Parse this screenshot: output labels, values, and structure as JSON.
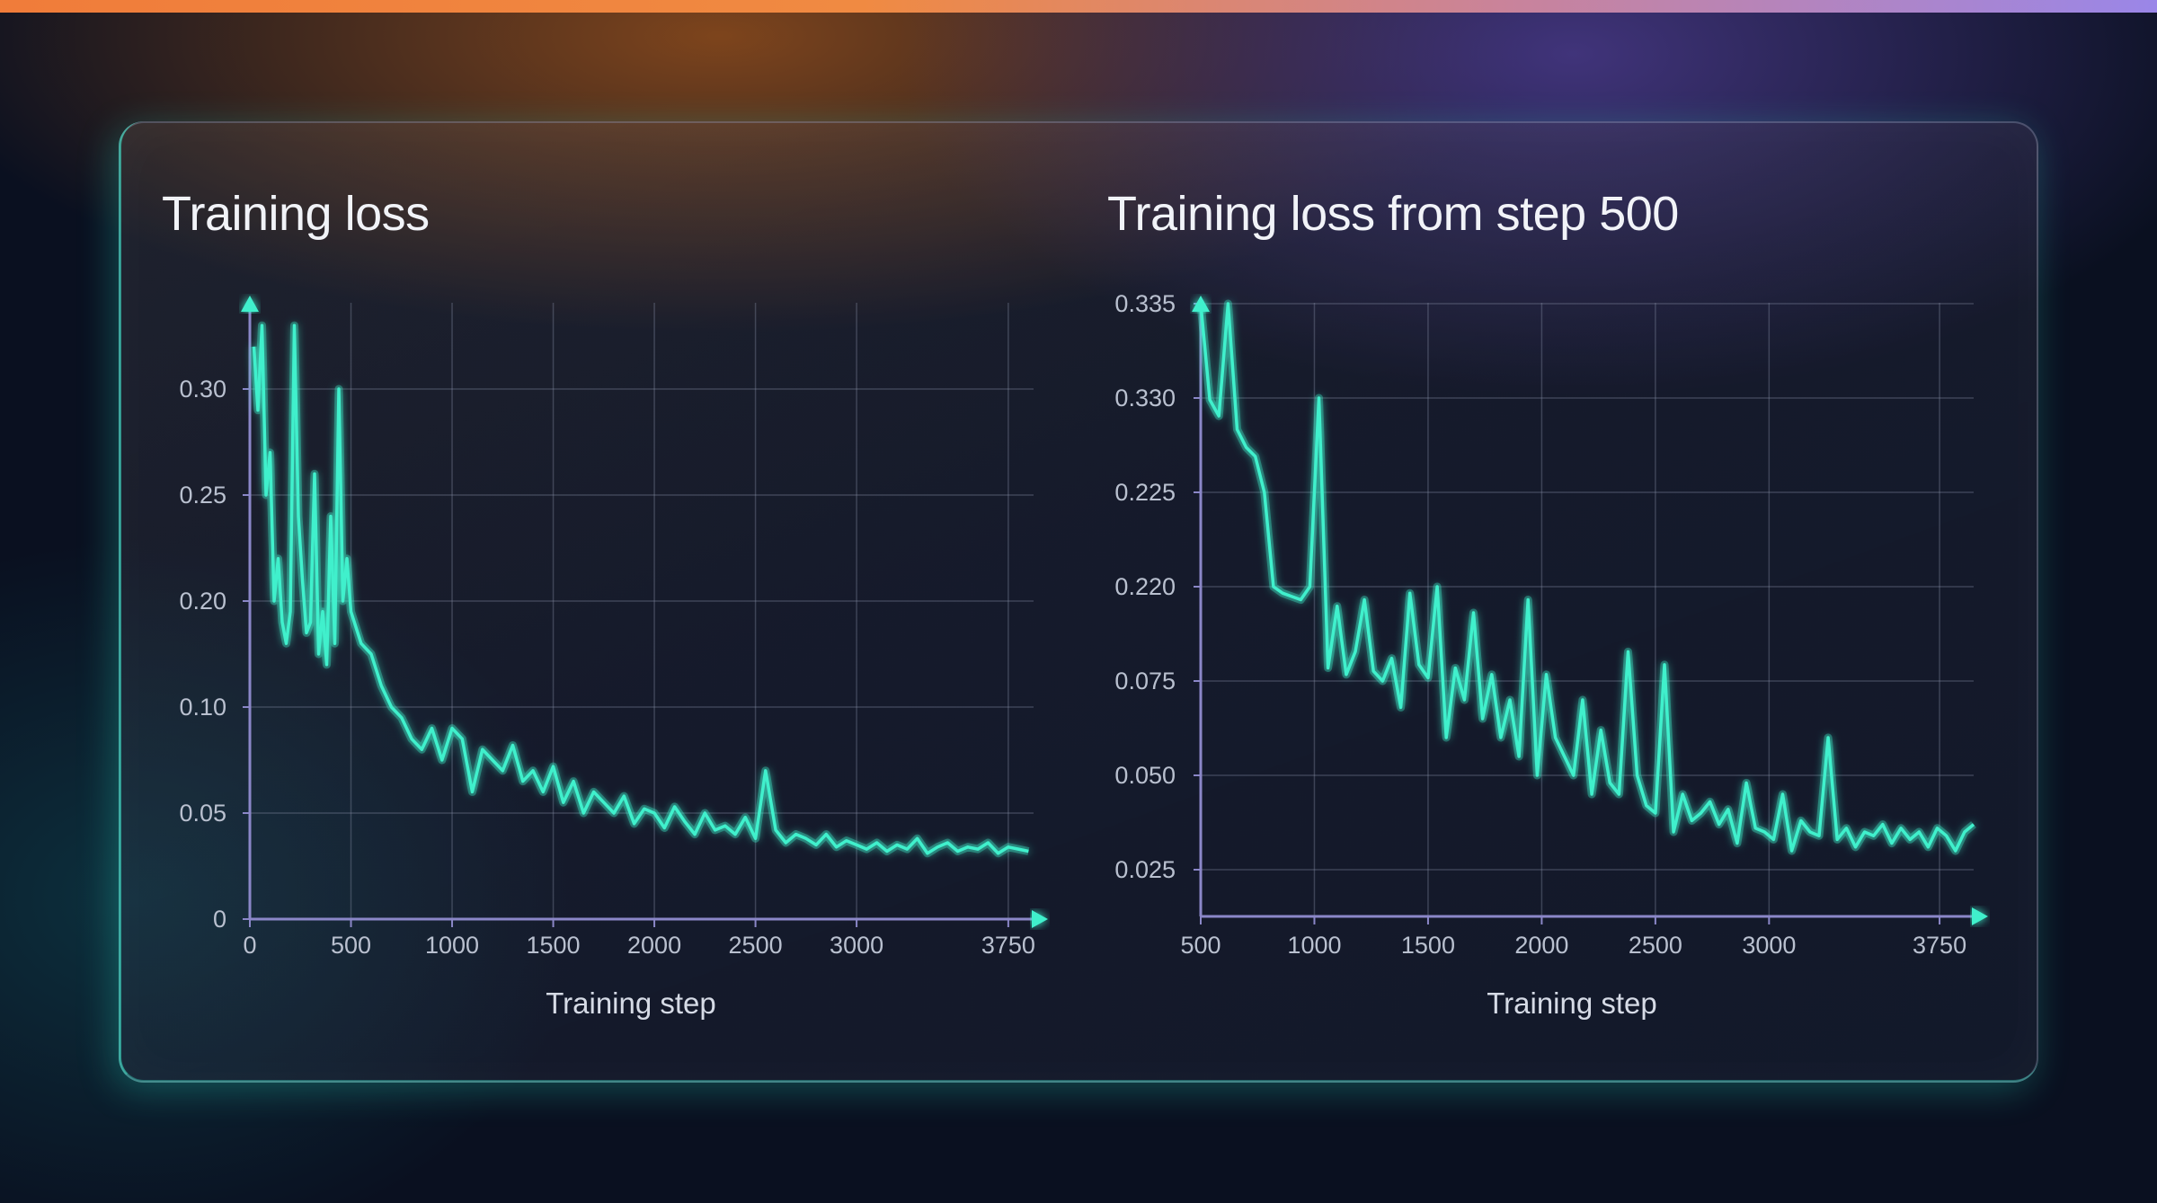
{
  "colors": {
    "line": "#3ff0cc",
    "grid": "#8a93a8",
    "axis": "#8b87c8",
    "arrow": "#3ff0cc"
  },
  "chart_data": [
    {
      "type": "line",
      "title": "Training loss",
      "xlabel": "Training step",
      "ylabel": "",
      "grid": true,
      "x_ticks": [
        0,
        500,
        1000,
        1500,
        2000,
        2500,
        3000,
        3750
      ],
      "y_tick_labels": [
        "0",
        "0.05",
        "0.10",
        "0.20",
        "0.25",
        "0.30"
      ],
      "series": [
        {
          "x": [
            20,
            40,
            60,
            80,
            100,
            120,
            140,
            160,
            180,
            200,
            220,
            240,
            260,
            280,
            300,
            320,
            340,
            360,
            380,
            400,
            420,
            440,
            460,
            480,
            500,
            550,
            600,
            650,
            700,
            750,
            800,
            850,
            900,
            950,
            1000,
            1050,
            1100,
            1150,
            1200,
            1250,
            1300,
            1350,
            1400,
            1450,
            1500,
            1550,
            1600,
            1650,
            1700,
            1750,
            1800,
            1850,
            1900,
            1950,
            2000,
            2050,
            2100,
            2150,
            2200,
            2250,
            2300,
            2350,
            2400,
            2450,
            2500,
            2550,
            2600,
            2650,
            2700,
            2750,
            2800,
            2850,
            2900,
            2950,
            3000,
            3050,
            3100,
            3150,
            3200,
            3250,
            3300,
            3350,
            3400,
            3450,
            3500,
            3550,
            3600,
            3650,
            3700,
            3750,
            3800,
            3850
          ],
          "y": [
            0.32,
            0.29,
            0.33,
            0.25,
            0.27,
            0.2,
            0.22,
            0.18,
            0.16,
            0.19,
            0.33,
            0.24,
            0.21,
            0.17,
            0.18,
            0.26,
            0.15,
            0.19,
            0.14,
            0.24,
            0.16,
            0.3,
            0.2,
            0.22,
            0.19,
            0.16,
            0.15,
            0.12,
            0.1,
            0.095,
            0.085,
            0.08,
            0.09,
            0.075,
            0.09,
            0.085,
            0.06,
            0.08,
            0.075,
            0.07,
            0.082,
            0.065,
            0.07,
            0.06,
            0.072,
            0.055,
            0.065,
            0.05,
            0.06,
            0.055,
            0.05,
            0.058,
            0.045,
            0.052,
            0.05,
            0.043,
            0.053,
            0.046,
            0.04,
            0.05,
            0.042,
            0.044,
            0.04,
            0.048,
            0.038,
            0.07,
            0.042,
            0.036,
            0.04,
            0.038,
            0.035,
            0.04,
            0.034,
            0.037,
            0.035,
            0.033,
            0.036,
            0.032,
            0.035,
            0.033,
            0.038,
            0.031,
            0.034,
            0.036,
            0.032,
            0.034,
            0.033,
            0.036,
            0.031,
            0.034,
            0.033,
            0.032
          ]
        }
      ]
    },
    {
      "type": "line",
      "title": "Training loss from step 500",
      "xlabel": "Training step",
      "ylabel": "",
      "grid": true,
      "x_ticks": [
        500,
        1000,
        1500,
        2000,
        2500,
        3000,
        3750
      ],
      "y_tick_labels": [
        "0.025",
        "0.050",
        "0.075",
        "0.220",
        "0.225",
        "0.330",
        "0.335"
      ],
      "series": [
        {
          "x": [
            500,
            540,
            580,
            620,
            660,
            700,
            740,
            780,
            820,
            860,
            900,
            940,
            980,
            1020,
            1060,
            1100,
            1140,
            1180,
            1220,
            1260,
            1300,
            1340,
            1380,
            1420,
            1460,
            1500,
            1540,
            1580,
            1620,
            1660,
            1700,
            1740,
            1780,
            1820,
            1860,
            1900,
            1940,
            1980,
            2020,
            2060,
            2100,
            2140,
            2180,
            2220,
            2260,
            2300,
            2340,
            2380,
            2420,
            2460,
            2500,
            2540,
            2580,
            2620,
            2660,
            2700,
            2740,
            2780,
            2820,
            2860,
            2900,
            2940,
            2980,
            3020,
            3060,
            3100,
            3140,
            3180,
            3220,
            3260,
            3300,
            3340,
            3380,
            3420,
            3460,
            3500,
            3540,
            3580,
            3620,
            3660,
            3700,
            3740,
            3780,
            3820,
            3860,
            3900
          ],
          "y": [
            0.335,
            0.328,
            0.31,
            0.335,
            0.295,
            0.275,
            0.265,
            0.225,
            0.22,
            0.21,
            0.205,
            0.2,
            0.22,
            0.33,
            0.095,
            0.19,
            0.085,
            0.12,
            0.2,
            0.09,
            0.075,
            0.11,
            0.068,
            0.21,
            0.1,
            0.08,
            0.22,
            0.06,
            0.095,
            0.07,
            0.18,
            0.065,
            0.085,
            0.06,
            0.07,
            0.055,
            0.2,
            0.05,
            0.085,
            0.06,
            0.055,
            0.05,
            0.07,
            0.045,
            0.062,
            0.048,
            0.045,
            0.12,
            0.05,
            0.042,
            0.04,
            0.1,
            0.035,
            0.045,
            0.038,
            0.04,
            0.043,
            0.037,
            0.041,
            0.032,
            0.048,
            0.036,
            0.035,
            0.033,
            0.045,
            0.03,
            0.038,
            0.035,
            0.034,
            0.06,
            0.033,
            0.036,
            0.031,
            0.035,
            0.034,
            0.037,
            0.032,
            0.036,
            0.033,
            0.035,
            0.031,
            0.036,
            0.034,
            0.03,
            0.035,
            0.037
          ]
        }
      ]
    }
  ]
}
